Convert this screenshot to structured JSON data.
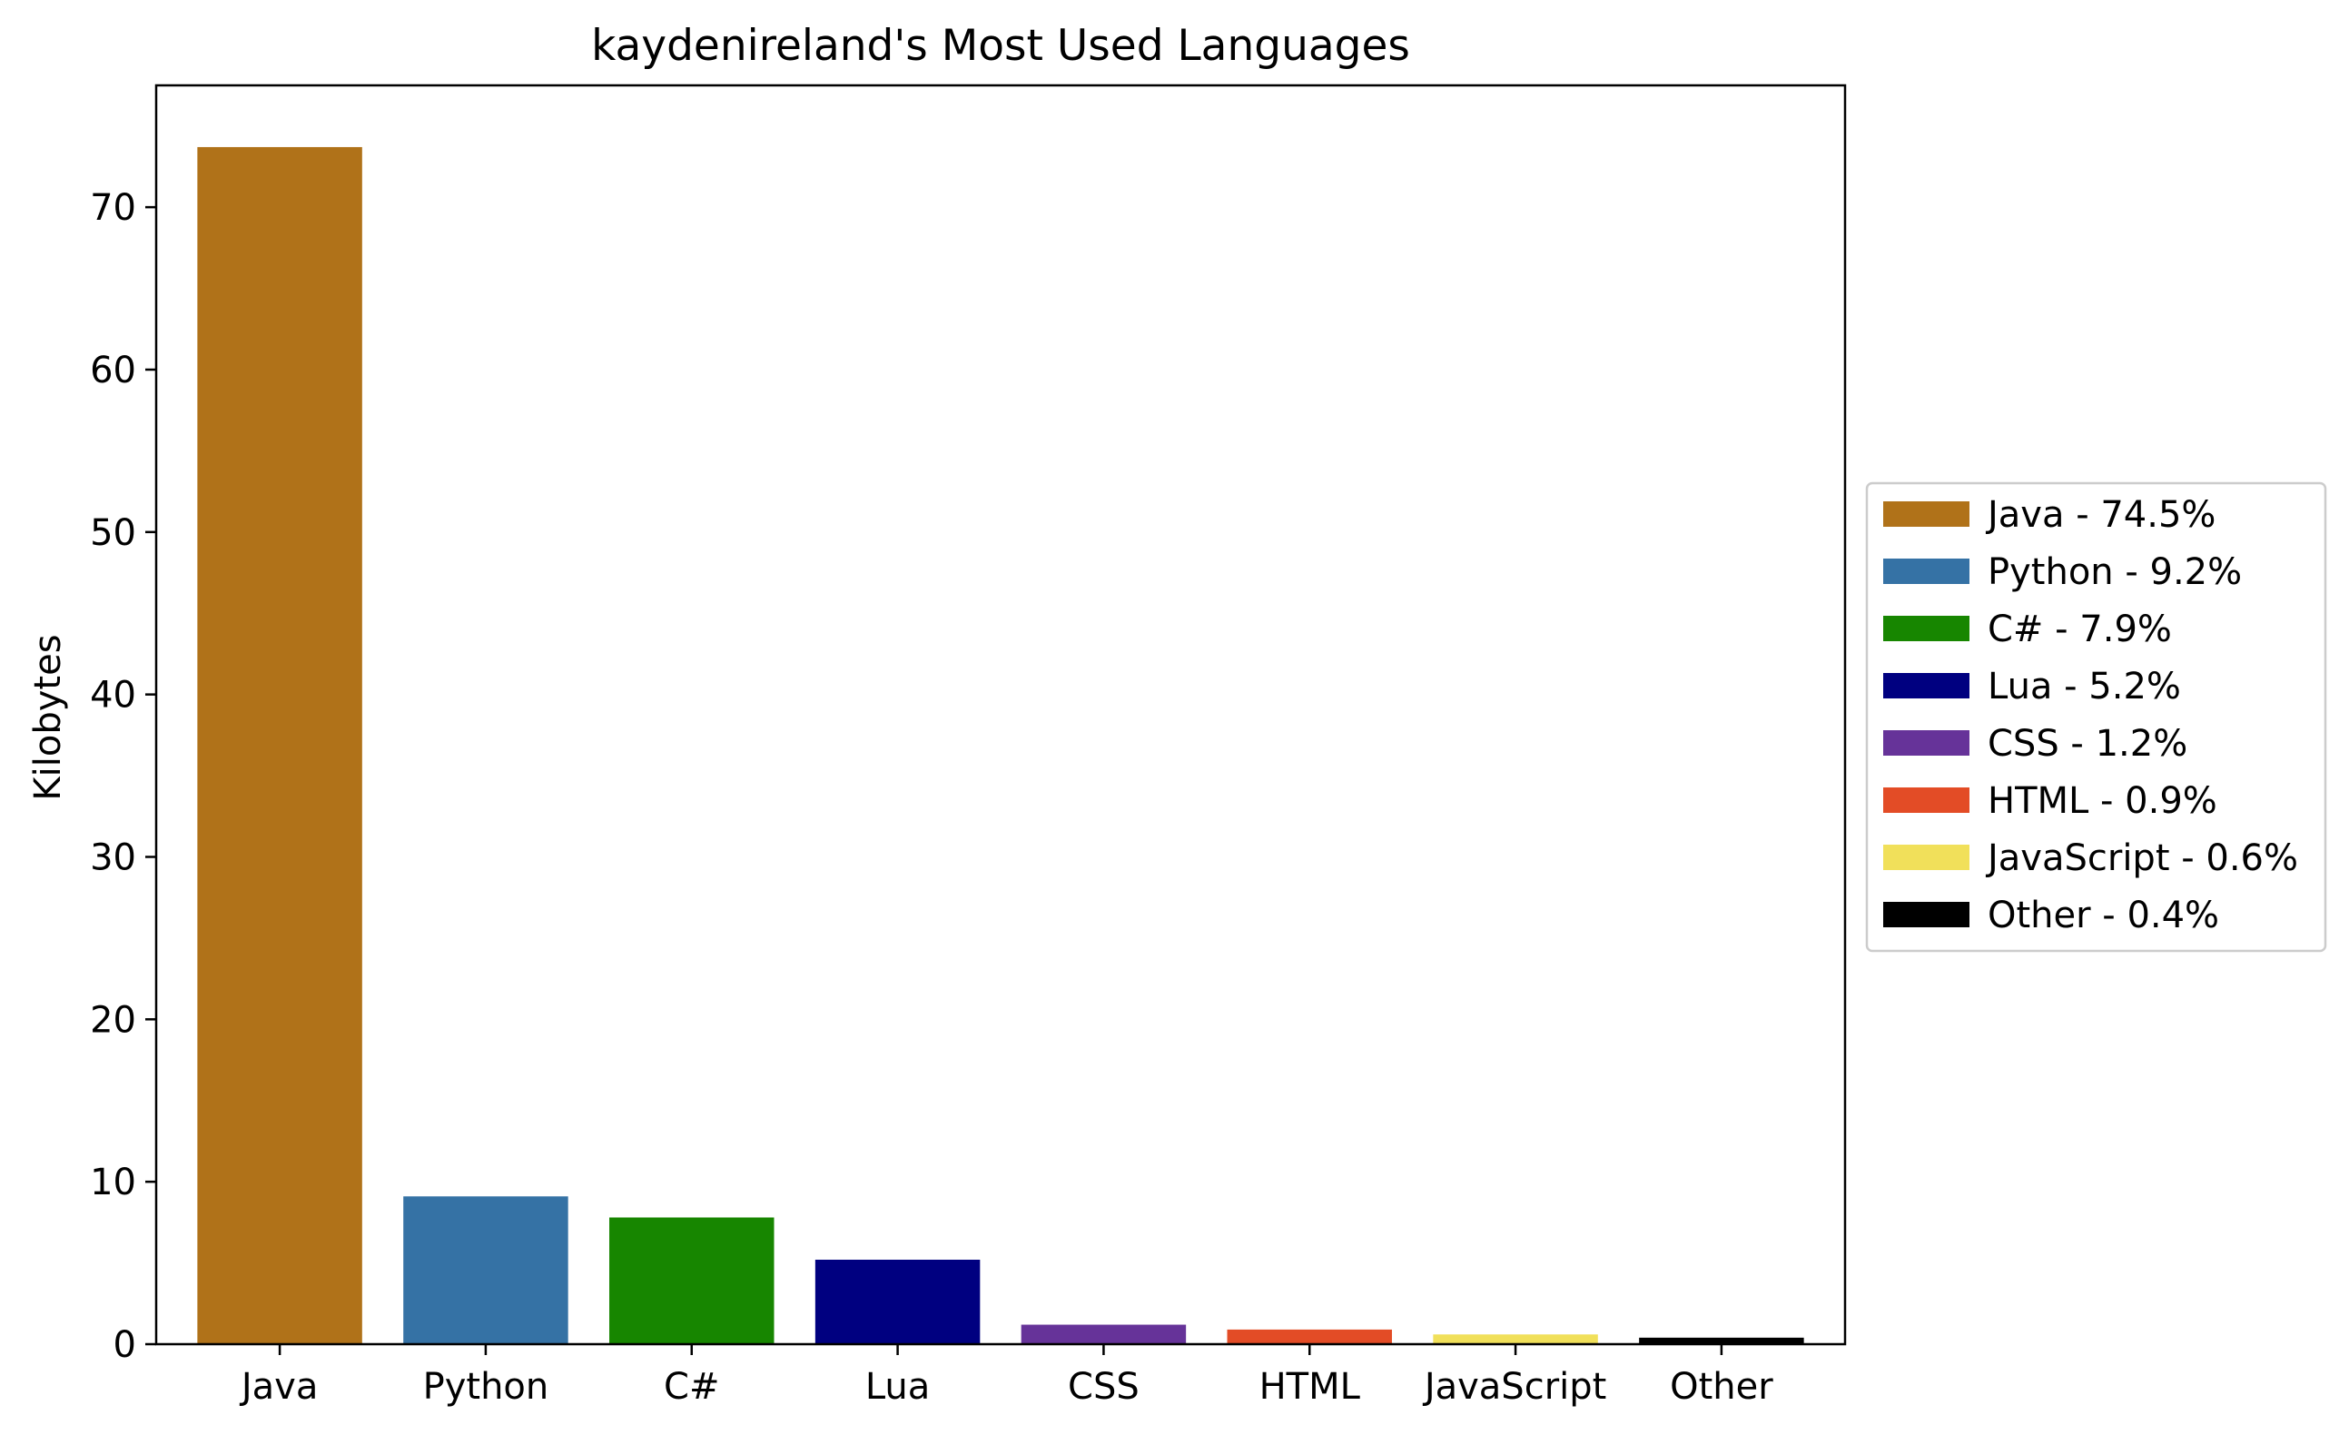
{
  "chart_data": {
    "type": "bar",
    "title": "kaydenireland's Most Used Languages",
    "xlabel": "",
    "ylabel": "Kilobytes",
    "categories": [
      "Java",
      "Python",
      "C#",
      "Lua",
      "CSS",
      "HTML",
      "JavaScript",
      "Other"
    ],
    "values": [
      73.7,
      9.1,
      7.8,
      5.2,
      1.2,
      0.9,
      0.6,
      0.4
    ],
    "colors": [
      "#b07219",
      "#3572a5",
      "#178600",
      "#000080",
      "#663399",
      "#e34c26",
      "#f1e05a",
      "#000000"
    ],
    "ylim": [
      0,
      77.5
    ],
    "yticks": [
      0,
      10,
      20,
      30,
      40,
      50,
      60,
      70
    ],
    "grid": false,
    "legend": {
      "placement": "center-right",
      "entries": [
        "Java - 74.5%",
        "Python - 9.2%",
        "C# - 7.9%",
        "Lua - 5.2%",
        "CSS - 1.2%",
        "HTML - 0.9%",
        "JavaScript - 0.6%",
        "Other - 0.4%"
      ]
    }
  }
}
